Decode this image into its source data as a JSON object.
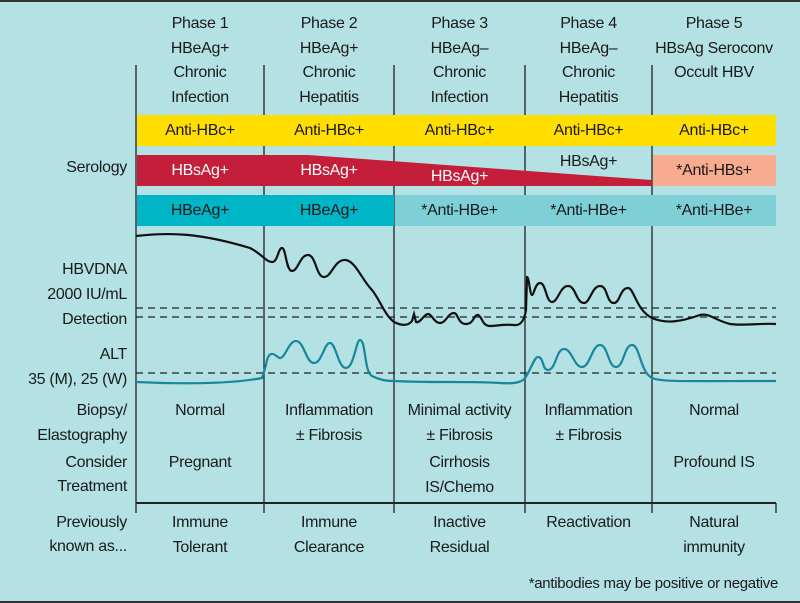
{
  "phases": [
    {
      "title": "Phase 1",
      "lines": [
        "HBeAg+",
        "Chronic",
        "Infection"
      ],
      "anti_hbc": "Anti-HBc+",
      "hbsag": "HBsAg+",
      "hbe": "HBeAg+",
      "biopsy": [
        "Normal",
        ""
      ],
      "treatment": [
        "Pregnant",
        ""
      ],
      "previously": [
        "Immune",
        "Tolerant"
      ]
    },
    {
      "title": "Phase 2",
      "lines": [
        "HBeAg+",
        "Chronic",
        "Hepatitis"
      ],
      "anti_hbc": "Anti-HBc+",
      "hbsag": "HBsAg+",
      "hbe": "HBeAg+",
      "biopsy": [
        "Inflammation",
        "± Fibrosis"
      ],
      "treatment": [
        "",
        ""
      ],
      "previously": [
        "Immune",
        "Clearance"
      ]
    },
    {
      "title": "Phase 3",
      "lines": [
        "HBeAg–",
        "Chronic",
        "Infection"
      ],
      "anti_hbc": "Anti-HBc+",
      "hbsag": "HBsAg+",
      "hbe": "*Anti-HBe+",
      "biopsy": [
        "Minimal activity",
        "± Fibrosis"
      ],
      "treatment": [
        "Cirrhosis",
        "IS/Chemo"
      ],
      "previously": [
        "Inactive",
        "Residual"
      ]
    },
    {
      "title": "Phase 4",
      "lines": [
        "HBeAg–",
        "Chronic",
        "Hepatitis"
      ],
      "anti_hbc": "Anti-HBc+",
      "hbsag": "HBsAg+",
      "hbe": "*Anti-HBe+",
      "biopsy": [
        "Inflammation",
        "± Fibrosis"
      ],
      "treatment": [
        "",
        ""
      ],
      "previously": [
        "Reactivation",
        ""
      ]
    },
    {
      "title": "Phase 5",
      "lines": [
        "HBsAg Seroconv",
        "Occult HBV",
        ""
      ],
      "anti_hbc": "Anti-HBc+",
      "hbsag": "*Anti-HBs+",
      "hbe": "*Anti-HBe+",
      "biopsy": [
        "Normal",
        ""
      ],
      "treatment": [
        "Profound IS",
        ""
      ],
      "previously": [
        "Natural",
        "immunity"
      ]
    }
  ],
  "row_labels": {
    "serology": "Serology",
    "hbvdna": "HBVDNA",
    "dna_threshold": "2000 IU/mL",
    "detection": "Detection",
    "alt": "ALT",
    "alt_threshold": "35 (M), 25 (W)",
    "biopsy_1": "Biopsy/",
    "biopsy_2": "Elastography",
    "treatment_1": "Consider",
    "treatment_2": "Treatment",
    "previously_1": "Previously",
    "previously_2": "known as..."
  },
  "footnote": "*antibodies may be positive or negative",
  "colors": {
    "background": "#b4e1e4",
    "anti_hbc": "#ffde00",
    "hbsag": "#c41e3a",
    "anti_hbs": "#f9ab90",
    "hbeag": "#00b5c6",
    "anti_hbe": "#7fcfd6",
    "dna_curve": "#111111",
    "alt_curve": "#17879a"
  }
}
